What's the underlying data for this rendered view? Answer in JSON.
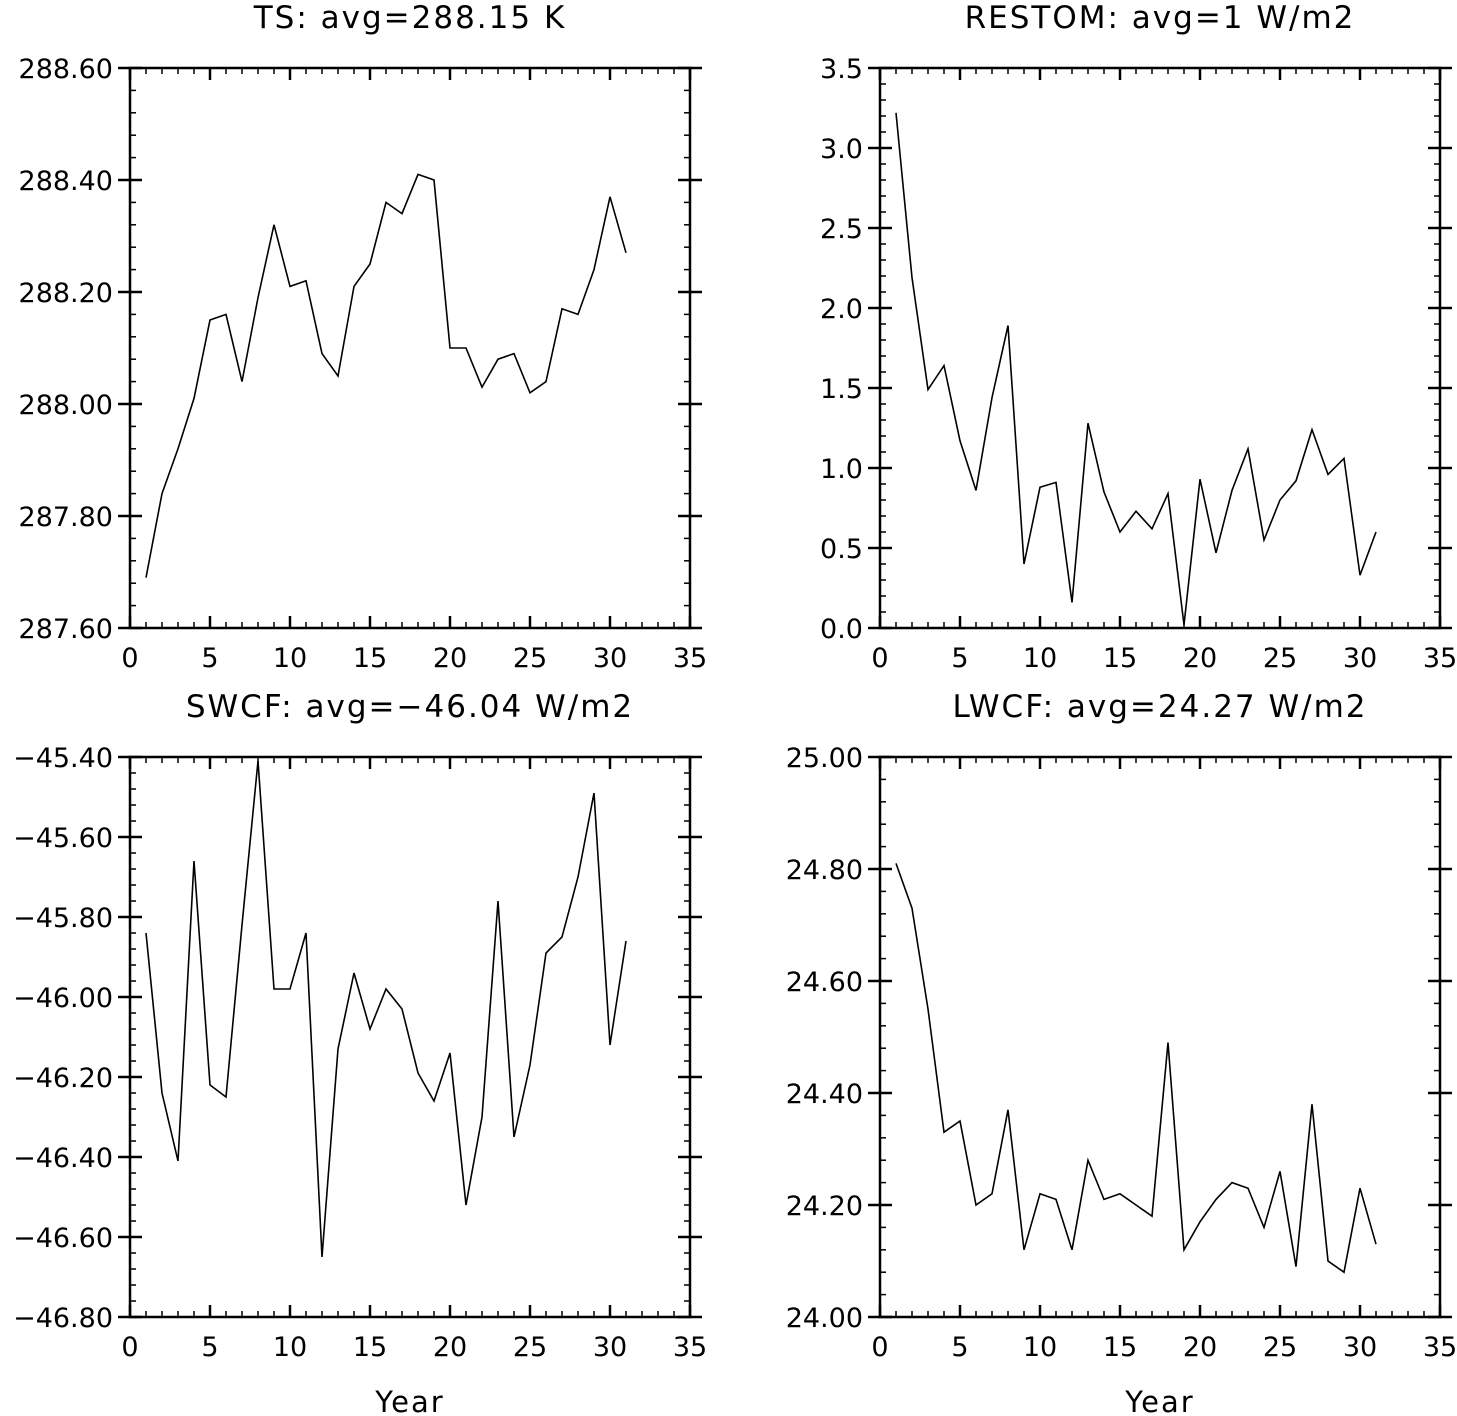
{
  "chart_data": [
    {
      "type": "line",
      "title": "TS: avg=288.15 K",
      "xlabel": "",
      "ylabel": "",
      "xlim": [
        0,
        35
      ],
      "ylim": [
        287.6,
        288.6
      ],
      "xticks": [
        "0",
        "5",
        "10",
        "15",
        "20",
        "25",
        "30",
        "35"
      ],
      "yticks": [
        "287.60",
        "287.80",
        "288.00",
        "288.20",
        "288.40",
        "288.60"
      ],
      "x": [
        1,
        2,
        3,
        4,
        5,
        6,
        7,
        8,
        9,
        10,
        11,
        12,
        13,
        14,
        15,
        16,
        17,
        18,
        19,
        20,
        21,
        22,
        23,
        24,
        25,
        26,
        27,
        28,
        29,
        30,
        31
      ],
      "values": [
        287.69,
        287.84,
        287.92,
        288.01,
        288.15,
        288.16,
        288.04,
        288.19,
        288.32,
        288.21,
        288.22,
        288.09,
        288.05,
        288.21,
        288.25,
        288.36,
        288.34,
        288.41,
        288.4,
        288.1,
        288.1,
        288.03,
        288.08,
        288.09,
        288.02,
        288.04,
        288.17,
        288.16,
        288.24,
        288.37,
        288.27
      ]
    },
    {
      "type": "line",
      "title": "RESTOM: avg=1 W/m2",
      "xlabel": "",
      "ylabel": "",
      "xlim": [
        0,
        35
      ],
      "ylim": [
        0.0,
        3.5
      ],
      "xticks": [
        "0",
        "5",
        "10",
        "15",
        "20",
        "25",
        "30",
        "35"
      ],
      "yticks": [
        "0.0",
        "0.5",
        "1.0",
        "1.5",
        "2.0",
        "2.5",
        "3.0",
        "3.5"
      ],
      "x": [
        1,
        2,
        3,
        4,
        5,
        6,
        7,
        8,
        9,
        10,
        11,
        12,
        13,
        14,
        15,
        16,
        17,
        18,
        19,
        20,
        21,
        22,
        23,
        24,
        25,
        26,
        27,
        28,
        29,
        30,
        31
      ],
      "values": [
        3.22,
        2.19,
        1.49,
        1.64,
        1.17,
        0.86,
        1.44,
        1.89,
        0.4,
        0.88,
        0.91,
        0.16,
        1.28,
        0.85,
        0.6,
        0.73,
        0.62,
        0.84,
        0.02,
        0.93,
        0.47,
        0.86,
        1.12,
        0.55,
        0.8,
        0.92,
        1.24,
        0.96,
        1.06,
        0.33,
        0.6
      ]
    },
    {
      "type": "line",
      "title": "SWCF: avg=−46.04 W/m2",
      "xlabel": "Year",
      "ylabel": "",
      "xlim": [
        0,
        35
      ],
      "ylim": [
        -46.8,
        -45.4
      ],
      "xticks": [
        "0",
        "5",
        "10",
        "15",
        "20",
        "25",
        "30",
        "35"
      ],
      "yticks": [
        "−46.80",
        "−46.60",
        "−46.40",
        "−46.20",
        "−46.00",
        "−45.80",
        "−45.60",
        "−45.40"
      ],
      "x": [
        1,
        2,
        3,
        4,
        5,
        6,
        7,
        8,
        9,
        10,
        11,
        12,
        13,
        14,
        15,
        16,
        17,
        18,
        19,
        20,
        21,
        22,
        23,
        24,
        25,
        26,
        27,
        28,
        29,
        30,
        31
      ],
      "values": [
        -45.84,
        -46.24,
        -46.41,
        -45.66,
        -46.22,
        -46.25,
        -45.82,
        -45.41,
        -45.98,
        -45.98,
        -45.84,
        -46.65,
        -46.13,
        -45.94,
        -46.08,
        -45.98,
        -46.03,
        -46.19,
        -46.26,
        -46.14,
        -46.52,
        -46.3,
        -45.76,
        -46.35,
        -46.17,
        -45.89,
        -45.85,
        -45.7,
        -45.49,
        -46.12,
        -45.86
      ]
    },
    {
      "type": "line",
      "title": "LWCF: avg=24.27 W/m2",
      "xlabel": "Year",
      "ylabel": "",
      "xlim": [
        0,
        35
      ],
      "ylim": [
        24.0,
        25.0
      ],
      "xticks": [
        "0",
        "5",
        "10",
        "15",
        "20",
        "25",
        "30",
        "35"
      ],
      "yticks": [
        "24.00",
        "24.20",
        "24.40",
        "24.60",
        "24.80",
        "25.00"
      ],
      "x": [
        1,
        2,
        3,
        4,
        5,
        6,
        7,
        8,
        9,
        10,
        11,
        12,
        13,
        14,
        15,
        16,
        17,
        18,
        19,
        20,
        21,
        22,
        23,
        24,
        25,
        26,
        27,
        28,
        29,
        30,
        31
      ],
      "values": [
        24.81,
        24.73,
        24.55,
        24.33,
        24.35,
        24.2,
        24.22,
        24.37,
        24.12,
        24.22,
        24.21,
        24.12,
        24.28,
        24.21,
        24.22,
        24.2,
        24.18,
        24.49,
        24.12,
        24.17,
        24.21,
        24.24,
        24.23,
        24.16,
        24.26,
        24.09,
        24.38,
        24.1,
        24.08,
        24.23,
        24.13
      ]
    }
  ]
}
